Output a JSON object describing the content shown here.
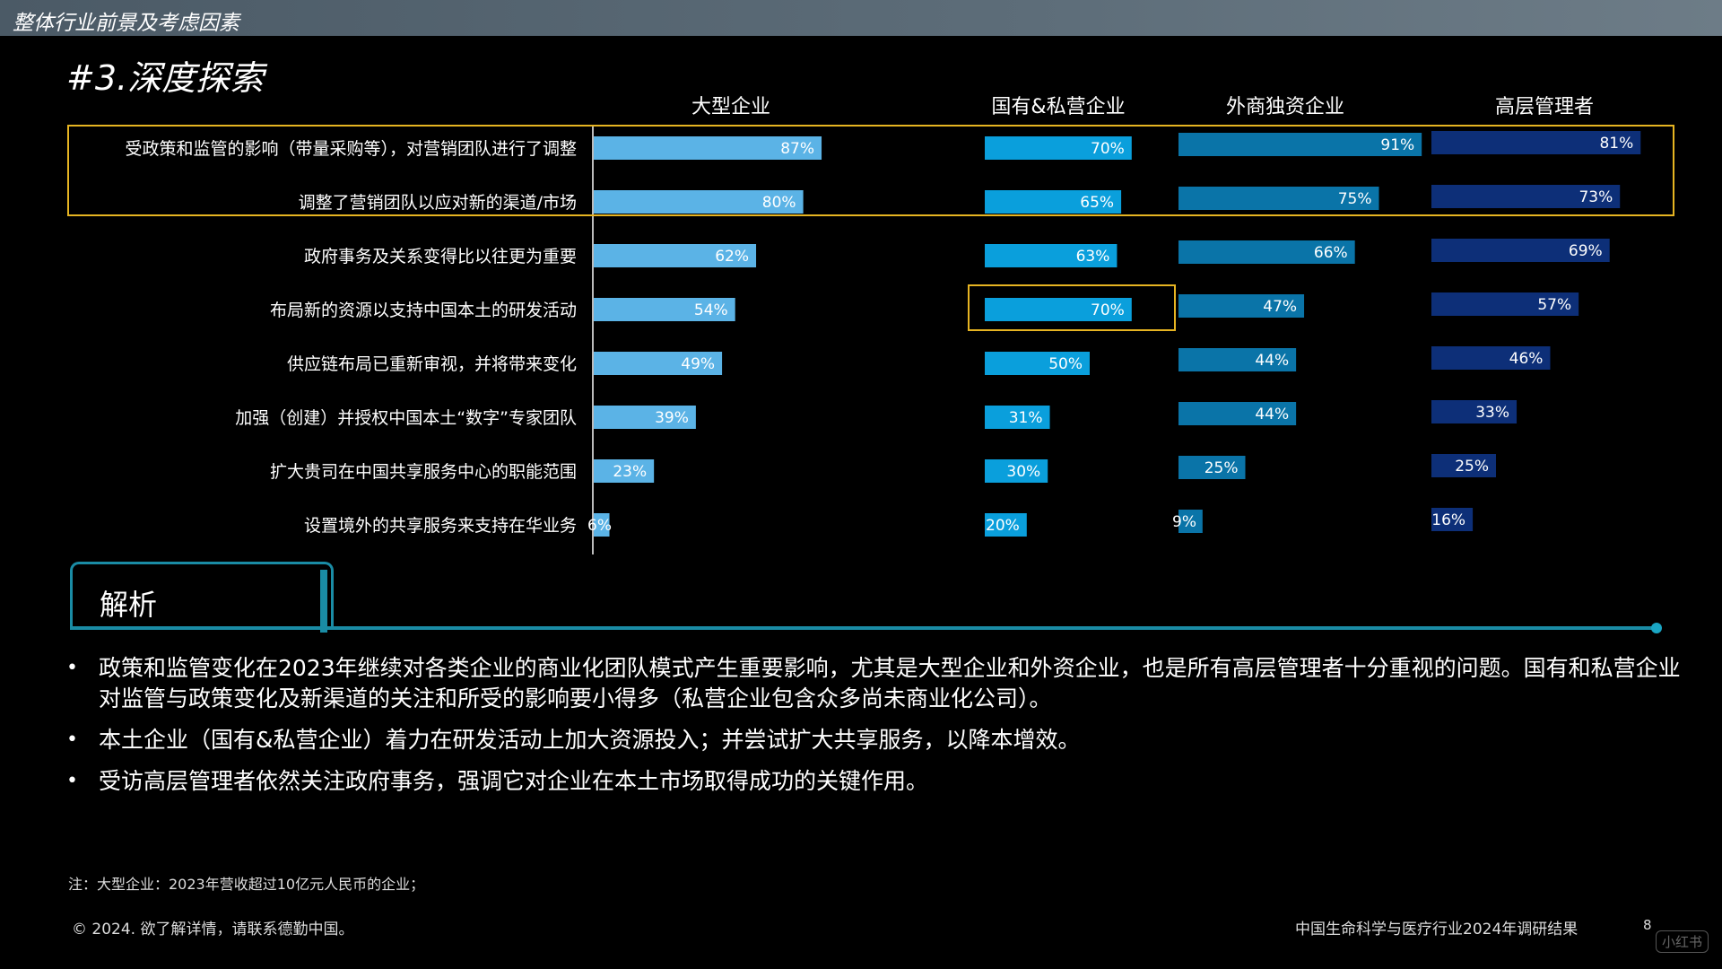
{
  "header": {
    "section": "整体行业前景及考虑因素"
  },
  "page_title": "#3.深度探索",
  "chart_data": {
    "type": "bar",
    "orientation": "horizontal",
    "categories": [
      "受政策和监管的影响（带量采购等），对营销团队进行了调整",
      "调整了营销团队以应对新的渠道/市场",
      "政府事务及关系变得比以往更为重要",
      "布局新的资源以支持中国本土的研发活动",
      "供应链布局已重新审视，并将带来变化",
      "加强（创建）并授权中国本土“数字”专家团队",
      "扩大贵司在中国共享服务中心的职能范围",
      "设置境外的共享服务来支持在华业务"
    ],
    "series": [
      {
        "name": "大型企业",
        "values": [
          87,
          80,
          62,
          54,
          49,
          39,
          23,
          6
        ],
        "color": "#5bb3e6"
      },
      {
        "name": "国有&私营企业",
        "values": [
          70,
          65,
          63,
          70,
          50,
          31,
          30,
          20
        ],
        "color": "#0a9fdc"
      },
      {
        "name": "外商独资企业",
        "values": [
          91,
          75,
          66,
          47,
          44,
          44,
          25,
          9
        ],
        "color": "#0a74a8"
      },
      {
        "name": "高层管理者",
        "values": [
          81,
          73,
          69,
          57,
          46,
          33,
          25,
          16
        ],
        "color": "#0d2f78"
      }
    ],
    "value_suffix": "%",
    "highlights": [
      "rows 1-2 all series",
      "国有&私营企业 row 4"
    ]
  },
  "analysis": {
    "title": "解析",
    "bullets": [
      "政策和监管变化在2023年继续对各类企业的商业化团队模式产生重要影响，尤其是大型企业和外资企业，也是所有高层管理者十分重视的问题。国有和私营企业对监管与政策变化及新渠道的关注和所受的影响要小得多（私营企业包含众多尚未商业化公司）。",
      "本土企业（国有&私营企业）着力在研发活动上加大资源投入；并尝试扩大共享服务，以降本增效。",
      "受访高层管理者依然关注政府事务，强调它对企业在本土市场取得成功的关键作用。"
    ]
  },
  "footer": {
    "note": "注：大型企业：2023年营收超过10亿元人民币的企业；",
    "copyright": "© 2024. 欲了解详情，请联系德勤中国。",
    "report_title": "中国生命科学与医疗行业2024年调研结果",
    "page_number": "8",
    "watermark": "小红书"
  }
}
